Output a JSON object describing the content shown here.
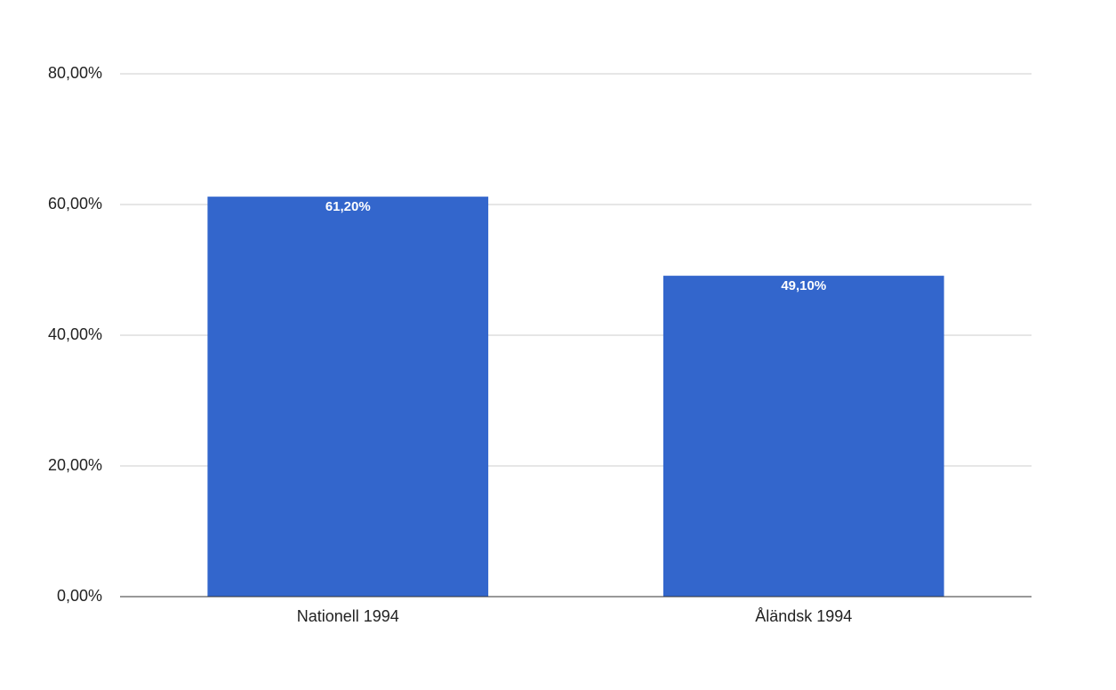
{
  "chart_data": {
    "type": "bar",
    "categories": [
      "Nationell 1994",
      "Åländsk 1994"
    ],
    "values": [
      61.2,
      49.1
    ],
    "value_labels": [
      "61,20%",
      "49,10%"
    ],
    "color": "#3366cc",
    "ylim": [
      0,
      80
    ],
    "yticks": [
      {
        "value": 0,
        "label": "0,00%"
      },
      {
        "value": 20,
        "label": "20,00%"
      },
      {
        "value": 40,
        "label": "40,00%"
      },
      {
        "value": 60,
        "label": "60,00%"
      },
      {
        "value": 80,
        "label": "80,00%"
      }
    ],
    "grid": true
  }
}
